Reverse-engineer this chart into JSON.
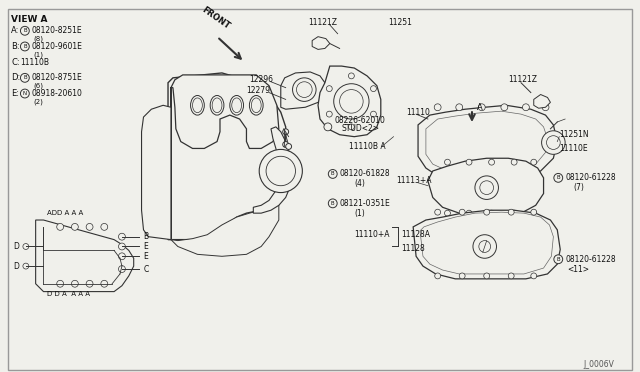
{
  "bg_color": "#f0f0eb",
  "border_color": "#999999",
  "line_color": "#333333",
  "text_color": "#111111",
  "footer": "J_0006V",
  "view_a_title": "VIEW A",
  "legend": [
    {
      "letter": "A",
      "sym": "B",
      "part": "08120-8251E",
      "qty": "(8)"
    },
    {
      "letter": "B",
      "sym": "B",
      "part": "08120-9601E",
      "qty": "(1)"
    },
    {
      "letter": "C",
      "sym": "",
      "part": "11110B",
      "qty": ""
    },
    {
      "letter": "D",
      "sym": "B",
      "part": "08120-8751E",
      "qty": "(6)"
    },
    {
      "letter": "E",
      "sym": "N",
      "part": "08918-20610",
      "qty": "(2)"
    }
  ]
}
